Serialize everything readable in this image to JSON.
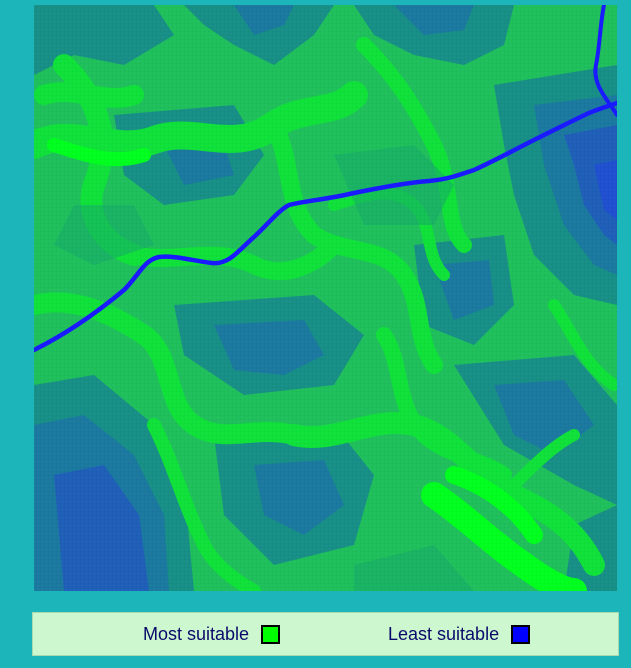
{
  "legend": {
    "most_label": "Most suitable",
    "most_color": "#00ff00",
    "least_label": "Least suitable",
    "least_color": "#0000ff"
  },
  "map": {
    "colors": {
      "base": "#1fbf5c",
      "mid": "#16a86a",
      "low": "#178f86",
      "lower": "#1b79a0",
      "lowest": "#1f5fb8",
      "bright": "#10e03a",
      "brightest": "#00ff1e",
      "road": "#1a1aff"
    },
    "road_label": "",
    "icons": {
      "road": "road-line",
      "stream": "stream-line"
    }
  }
}
